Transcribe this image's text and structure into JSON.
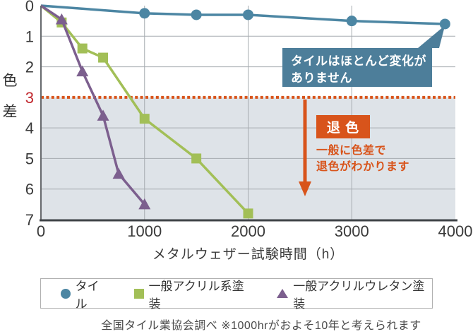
{
  "chart_data": {
    "type": "line",
    "xlabel": "メタルウェザー試験時間（h）",
    "ylabel": "色\n差",
    "xlim": [
      0,
      4000
    ],
    "ylim": [
      0,
      7
    ],
    "y_axis_inverted": true,
    "x_ticks": [
      0,
      1000,
      2000,
      3000,
      4000
    ],
    "y_ticks": [
      0,
      1,
      2,
      3,
      4,
      5,
      6,
      7
    ],
    "y_tick_highlight": {
      "value": 3,
      "color": "#c1272d"
    },
    "grid": true,
    "threshold": {
      "y": 3,
      "style": "dotted",
      "color": "#d8541b",
      "meaning": "退色ライン"
    },
    "shaded_region": {
      "from_y": 3,
      "to_y": 7,
      "color": "#dee3e8"
    },
    "series": [
      {
        "name": "タイル",
        "marker": "circle",
        "color": "#4c86a3",
        "points": [
          [
            0,
            0
          ],
          [
            1000,
            0.25
          ],
          [
            1500,
            0.3
          ],
          [
            2000,
            0.3
          ],
          [
            3000,
            0.5
          ],
          [
            3900,
            0.6
          ]
        ]
      },
      {
        "name": "一般アクリル系塗装",
        "marker": "square",
        "color": "#a2bf57",
        "points": [
          [
            0,
            0
          ],
          [
            200,
            0.55
          ],
          [
            400,
            1.4
          ],
          [
            600,
            1.7
          ],
          [
            1000,
            3.7
          ],
          [
            1500,
            5.0
          ],
          [
            2000,
            6.8
          ]
        ]
      },
      {
        "name": "一般アクリルウレタン塗装",
        "marker": "triangle",
        "color": "#7c5f8e",
        "points": [
          [
            0,
            0
          ],
          [
            200,
            0.45
          ],
          [
            400,
            2.15
          ],
          [
            600,
            3.6
          ],
          [
            750,
            5.5
          ],
          [
            1000,
            6.5
          ]
        ]
      }
    ]
  },
  "annotations": {
    "callout_line1": "タイルはほとんど変化が",
    "callout_line2": "ありません",
    "fade_label": "退 色",
    "fade_desc_line1": "一般に色差で",
    "fade_desc_line2": "退色がわかります"
  },
  "legend": {
    "items": [
      {
        "label": "タイル",
        "marker": "circle",
        "color": "#4c86a3"
      },
      {
        "label": "一般アクリル系塗装",
        "marker": "square",
        "color": "#a2bf57"
      },
      {
        "label": "一般アクリルウレタン塗装",
        "marker": "triangle",
        "color": "#7c5f8e"
      }
    ]
  },
  "caption": "全国タイル業協会調べ ※1000hrがおよそ10年と考えられます",
  "colors": {
    "accent_orange": "#d8541b",
    "callout_blue": "#4d7e9a",
    "shade": "#dee3e8",
    "gridline": "#a6abb0",
    "axis": "#3f4347",
    "text": "#333333",
    "red_tick": "#c1272d"
  }
}
